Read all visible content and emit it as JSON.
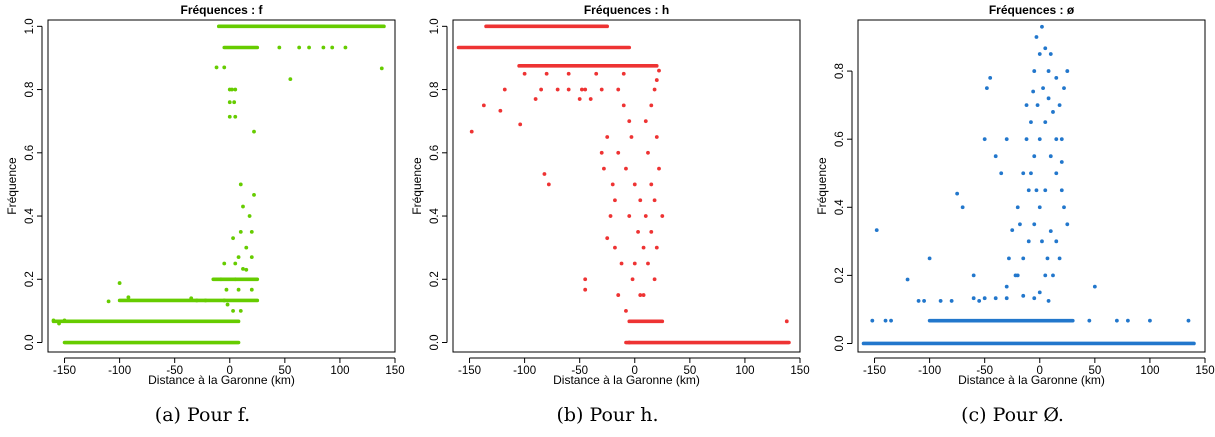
{
  "chart_data": [
    {
      "type": "scatter",
      "title": "Fréquences : f",
      "xlabel": "Distance à la Garonne (km)",
      "ylabel": "Fréquence",
      "xlim": [
        -165,
        150
      ],
      "ylim": [
        -0.03,
        1.02
      ],
      "xticks": [
        "-150",
        "-100",
        "-50",
        "0",
        "50",
        "100",
        "150"
      ],
      "yticks": [
        "0.0",
        "0.2",
        "0.4",
        "0.6",
        "0.8",
        "1.0"
      ],
      "color": "#66cc00",
      "caption": "(a) Pour f.",
      "bands": [
        {
          "y": 1.0,
          "x0": -10,
          "x1": 140
        },
        {
          "y": 0.933,
          "x0": -5,
          "x1": 25
        },
        {
          "y": 0.067,
          "x0": -160,
          "x1": 8
        },
        {
          "y": 0.0,
          "x0": -150,
          "x1": 8
        },
        {
          "y": 0.133,
          "x0": -100,
          "x1": 25
        },
        {
          "y": 0.2,
          "x0": -15,
          "x1": 25
        }
      ],
      "points": [
        [
          -110,
          0.13
        ],
        [
          -100,
          0.188
        ],
        [
          -92,
          0.143
        ],
        [
          -35,
          0.14
        ],
        [
          -30,
          0.133
        ],
        [
          -22,
          0.133
        ],
        [
          -150,
          0.07
        ],
        [
          -160,
          0.07
        ],
        [
          -155,
          0.06
        ],
        [
          -5,
          0.133
        ],
        [
          -12,
          0.87
        ],
        [
          -5,
          0.87
        ],
        [
          0,
          0.8
        ],
        [
          2,
          0.8
        ],
        [
          5,
          0.8
        ],
        [
          0,
          0.76
        ],
        [
          4,
          0.76
        ],
        [
          0,
          0.714
        ],
        [
          5,
          0.714
        ],
        [
          55,
          0.833
        ],
        [
          138,
          0.867
        ],
        [
          45,
          0.933
        ],
        [
          63,
          0.933
        ],
        [
          85,
          0.933
        ],
        [
          105,
          0.933
        ],
        [
          72,
          0.933
        ],
        [
          93,
          0.933
        ],
        [
          22,
          0.667
        ],
        [
          10,
          0.5
        ],
        [
          22,
          0.467
        ],
        [
          12,
          0.43
        ],
        [
          18,
          0.4
        ],
        [
          10,
          0.35
        ],
        [
          20,
          0.35
        ],
        [
          3,
          0.33
        ],
        [
          15,
          0.3
        ],
        [
          8,
          0.27
        ],
        [
          20,
          0.27
        ],
        [
          -5,
          0.25
        ],
        [
          5,
          0.25
        ],
        [
          15,
          0.23
        ],
        [
          -2,
          0.12
        ],
        [
          3,
          0.1
        ],
        [
          10,
          0.1
        ],
        [
          8,
          0.167
        ],
        [
          20,
          0.167
        ],
        [
          -3,
          0.167
        ],
        [
          12,
          0.233
        ],
        [
          5,
          0.2
        ],
        [
          -8,
          0.2
        ]
      ]
    },
    {
      "type": "scatter",
      "title": "Fréquences : h",
      "xlabel": "Distance à la Garonne (km)",
      "ylabel": "Fréquence",
      "xlim": [
        -165,
        150
      ],
      "ylim": [
        -0.03,
        1.02
      ],
      "xticks": [
        "-150",
        "-100",
        "-50",
        "0",
        "50",
        "100",
        "150"
      ],
      "yticks": [
        "0.0",
        "0.2",
        "0.4",
        "0.6",
        "0.8",
        "1.0"
      ],
      "color": "#ee3333",
      "caption": "(b) Pour h.",
      "bands": [
        {
          "y": 1.0,
          "x0": -135,
          "x1": -25
        },
        {
          "y": 0.933,
          "x0": -160,
          "x1": -5
        },
        {
          "y": 0.875,
          "x0": -105,
          "x1": 20
        },
        {
          "y": 0.0,
          "x0": -8,
          "x1": 140
        },
        {
          "y": 0.067,
          "x0": -5,
          "x1": 25
        }
      ],
      "points": [
        [
          -148,
          0.667
        ],
        [
          -137,
          0.75
        ],
        [
          -122,
          0.733
        ],
        [
          -104,
          0.69
        ],
        [
          -118,
          0.8
        ],
        [
          -85,
          0.8
        ],
        [
          -70,
          0.8
        ],
        [
          -60,
          0.8
        ],
        [
          -45,
          0.8
        ],
        [
          -30,
          0.8
        ],
        [
          -15,
          0.8
        ],
        [
          -90,
          0.77
        ],
        [
          -50,
          0.77
        ],
        [
          -40,
          0.77
        ],
        [
          -100,
          0.85
        ],
        [
          -80,
          0.85
        ],
        [
          -60,
          0.85
        ],
        [
          -35,
          0.85
        ],
        [
          -10,
          0.85
        ],
        [
          -82,
          0.533
        ],
        [
          -78,
          0.5
        ],
        [
          -48,
          0.8
        ],
        [
          -45,
          0.2
        ],
        [
          -45,
          0.167
        ],
        [
          -30,
          0.6
        ],
        [
          -28,
          0.55
        ],
        [
          -25,
          0.65
        ],
        [
          -20,
          0.5
        ],
        [
          -18,
          0.45
        ],
        [
          -15,
          0.6
        ],
        [
          -22,
          0.4
        ],
        [
          -25,
          0.33
        ],
        [
          -18,
          0.3
        ],
        [
          -10,
          0.75
        ],
        [
          -12,
          0.25
        ],
        [
          -15,
          0.15
        ],
        [
          -8,
          0.1
        ],
        [
          -5,
          0.7
        ],
        [
          -3,
          0.65
        ],
        [
          -8,
          0.55
        ],
        [
          0,
          0.5
        ],
        [
          5,
          0.45
        ],
        [
          -5,
          0.4
        ],
        [
          3,
          0.35
        ],
        [
          8,
          0.3
        ],
        [
          0,
          0.25
        ],
        [
          -2,
          0.2
        ],
        [
          5,
          0.15
        ],
        [
          10,
          0.7
        ],
        [
          15,
          0.75
        ],
        [
          18,
          0.8
        ],
        [
          12,
          0.6
        ],
        [
          20,
          0.65
        ],
        [
          15,
          0.5
        ],
        [
          18,
          0.45
        ],
        [
          22,
          0.55
        ],
        [
          10,
          0.4
        ],
        [
          15,
          0.35
        ],
        [
          20,
          0.3
        ],
        [
          12,
          0.25
        ],
        [
          18,
          0.2
        ],
        [
          8,
          0.15
        ],
        [
          22,
          0.86
        ],
        [
          20,
          0.83
        ],
        [
          25,
          0.4
        ],
        [
          -5,
          0.0
        ],
        [
          138,
          0.067
        ]
      ]
    },
    {
      "type": "scatter",
      "title": "Fréquences : ø",
      "xlabel": "Distance à la Garonne (km)",
      "ylabel": "Fréquence",
      "xlim": [
        -165,
        150
      ],
      "ylim": [
        -0.025,
        0.95
      ],
      "xticks": [
        "-150",
        "-100",
        "-50",
        "0",
        "50",
        "100",
        "150"
      ],
      "yticks": [
        "0.0",
        "0.2",
        "0.4",
        "0.6",
        "0.8"
      ],
      "color": "#2277cc",
      "caption": "(c) Pour Ø.",
      "bands": [
        {
          "y": 0.0,
          "x0": -160,
          "x1": 140
        },
        {
          "y": 0.067,
          "x0": -100,
          "x1": 30
        }
      ],
      "points": [
        [
          -148,
          0.333
        ],
        [
          -152,
          0.067
        ],
        [
          -120,
          0.188
        ],
        [
          -140,
          0.067
        ],
        [
          -100,
          0.25
        ],
        [
          -110,
          0.125
        ],
        [
          -105,
          0.125
        ],
        [
          -90,
          0.125
        ],
        [
          -80,
          0.125
        ],
        [
          -75,
          0.44
        ],
        [
          -70,
          0.4
        ],
        [
          -60,
          0.2
        ],
        [
          -55,
          0.125
        ],
        [
          -50,
          0.6
        ],
        [
          -45,
          0.78
        ],
        [
          -48,
          0.75
        ],
        [
          -40,
          0.55
        ],
        [
          -35,
          0.5
        ],
        [
          -30,
          0.6
        ],
        [
          -50,
          0.133
        ],
        [
          -40,
          0.133
        ],
        [
          -30,
          0.167
        ],
        [
          -20,
          0.2
        ],
        [
          -15,
          0.25
        ],
        [
          -10,
          0.3
        ],
        [
          -5,
          0.35
        ],
        [
          0,
          0.4
        ],
        [
          5,
          0.45
        ],
        [
          -10,
          0.45
        ],
        [
          -20,
          0.4
        ],
        [
          -25,
          0.333
        ],
        [
          -15,
          0.5
        ],
        [
          -5,
          0.55
        ],
        [
          0,
          0.6
        ],
        [
          5,
          0.65
        ],
        [
          10,
          0.55
        ],
        [
          15,
          0.5
        ],
        [
          20,
          0.6
        ],
        [
          -8,
          0.65
        ],
        [
          -2,
          0.7
        ],
        [
          3,
          0.75
        ],
        [
          8,
          0.8
        ],
        [
          -5,
          0.8
        ],
        [
          0,
          0.85
        ],
        [
          5,
          0.867
        ],
        [
          -3,
          0.9
        ],
        [
          2,
          0.93
        ],
        [
          8,
          0.72
        ],
        [
          12,
          0.68
        ],
        [
          18,
          0.7
        ],
        [
          22,
          0.75
        ],
        [
          25,
          0.8
        ],
        [
          15,
          0.78
        ],
        [
          20,
          0.45
        ],
        [
          22,
          0.4
        ],
        [
          25,
          0.35
        ],
        [
          10,
          0.33
        ],
        [
          15,
          0.3
        ],
        [
          18,
          0.25
        ],
        [
          12,
          0.2
        ],
        [
          5,
          0.2
        ],
        [
          0,
          0.15
        ],
        [
          -5,
          0.133
        ],
        [
          8,
          0.125
        ],
        [
          -15,
          0.14
        ],
        [
          -30,
          0.133
        ],
        [
          -60,
          0.133
        ],
        [
          50,
          0.167
        ],
        [
          45,
          0.067
        ],
        [
          70,
          0.067
        ],
        [
          100,
          0.067
        ],
        [
          80,
          0.067
        ],
        [
          -12,
          0.6
        ],
        [
          -8,
          0.5
        ],
        [
          -3,
          0.45
        ],
        [
          2,
          0.3
        ],
        [
          7,
          0.25
        ],
        [
          -18,
          0.35
        ],
        [
          -22,
          0.2
        ],
        [
          -28,
          0.25
        ],
        [
          15,
          0.6
        ],
        [
          20,
          0.533
        ],
        [
          -12,
          0.7
        ],
        [
          -6,
          0.74
        ],
        [
          10,
          0.85
        ],
        [
          135,
          0.067
        ],
        [
          -135,
          0.067
        ]
      ]
    }
  ]
}
